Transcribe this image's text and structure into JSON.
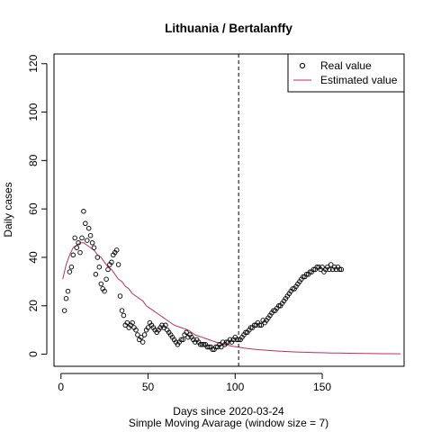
{
  "chart_data": {
    "type": "scatter",
    "title": "Lithuania / Bertalanffy",
    "xlabel": "Days since 2020-03-24",
    "xlabel_sub": "Simple Moving Avarage (window size = 7)",
    "ylabel": "Daily cases",
    "xlim": [
      -4,
      197
    ],
    "ylim": [
      -5,
      124
    ],
    "x_ticks": [
      0,
      50,
      100,
      150
    ],
    "y_ticks": [
      0,
      20,
      40,
      60,
      80,
      100,
      120
    ],
    "vline_x": 102,
    "legend": {
      "position": "top-right",
      "entries": [
        "Real value",
        "Estimated value"
      ]
    },
    "colors": {
      "real": "#000000",
      "estimated": "#c0305a"
    },
    "series": [
      {
        "name": "Real value",
        "kind": "points",
        "x": [
          2,
          3,
          4,
          5,
          6,
          7,
          8,
          9,
          10,
          11,
          12,
          13,
          14,
          15,
          16,
          17,
          18,
          19,
          20,
          21,
          22,
          23,
          24,
          25,
          26,
          27,
          28,
          29,
          30,
          31,
          32,
          33,
          34,
          35,
          36,
          37,
          38,
          39,
          40,
          41,
          42,
          43,
          44,
          45,
          46,
          47,
          48,
          49,
          50,
          51,
          52,
          53,
          54,
          55,
          56,
          57,
          58,
          59,
          60,
          61,
          62,
          63,
          64,
          65,
          66,
          67,
          68,
          69,
          70,
          71,
          72,
          73,
          74,
          75,
          76,
          77,
          78,
          79,
          80,
          81,
          82,
          83,
          84,
          85,
          86,
          87,
          88,
          89,
          90,
          91,
          92,
          93,
          94,
          95,
          96,
          97,
          98,
          99,
          100,
          101,
          102,
          103,
          104,
          105,
          106,
          107,
          108,
          109,
          110,
          111,
          112,
          113,
          114,
          115,
          116,
          117,
          118,
          119,
          120,
          121,
          122,
          123,
          124,
          125,
          126,
          127,
          128,
          129,
          130,
          131,
          132,
          133,
          134,
          135,
          136,
          137,
          138,
          139,
          140,
          141,
          142,
          143,
          144,
          145,
          146,
          147,
          148,
          149,
          150,
          151,
          152,
          153,
          154,
          155,
          156,
          157,
          158,
          159,
          160,
          161
        ],
        "y": [
          18,
          23,
          26,
          34,
          36,
          41,
          48,
          44,
          46,
          42,
          48,
          59,
          54,
          47,
          52,
          49,
          46,
          44,
          33,
          40,
          36,
          29,
          27,
          26,
          31,
          35,
          37,
          38,
          41,
          42,
          43,
          37,
          24,
          18,
          16,
          12,
          13,
          11,
          12,
          13,
          11,
          10,
          8,
          6,
          7,
          5,
          8,
          10,
          11,
          13,
          12,
          11,
          10,
          9,
          10,
          11,
          12,
          11,
          12,
          10,
          9,
          8,
          7,
          6,
          5,
          4,
          5,
          6,
          6,
          8,
          9,
          7,
          8,
          7,
          6,
          5,
          6,
          5,
          4,
          4,
          4,
          4,
          3,
          3,
          3,
          2,
          2,
          3,
          3,
          4,
          3,
          5,
          4,
          5,
          5,
          6,
          5,
          6,
          7,
          6,
          6,
          6,
          7,
          8,
          9,
          9,
          10,
          11,
          11,
          12,
          12,
          13,
          12,
          12,
          14,
          13,
          14,
          15,
          16,
          17,
          18,
          18,
          19,
          20,
          20,
          21,
          22,
          23,
          24,
          25,
          26,
          27,
          27,
          28,
          29,
          30,
          31,
          32,
          32,
          33,
          33,
          34,
          34,
          35,
          35,
          36,
          36,
          35,
          36,
          34,
          35,
          36,
          35,
          37,
          35,
          36,
          35,
          36,
          35,
          35
        ],
        "note": ""
      },
      {
        "name": "Estimated value",
        "kind": "line",
        "x": [
          1,
          3,
          5,
          7,
          9,
          11,
          13,
          15,
          17,
          19,
          21,
          23,
          25,
          27,
          29,
          31,
          33,
          35,
          37,
          39,
          41,
          43,
          45,
          47,
          49,
          51,
          53,
          55,
          57,
          59,
          61,
          63,
          65,
          67,
          69,
          71,
          73,
          75,
          77,
          79,
          81,
          83,
          85,
          87,
          89,
          91,
          93,
          95,
          97,
          99,
          101,
          103,
          105,
          110,
          115,
          120,
          125,
          130,
          135,
          140,
          145,
          150,
          155,
          160,
          165,
          170,
          175,
          180,
          185,
          190,
          195
        ],
        "y": [
          31,
          37,
          41,
          44,
          45,
          46,
          46,
          45,
          44,
          43,
          41,
          40,
          38,
          36,
          35,
          33,
          31,
          30,
          28,
          27,
          25,
          24,
          23,
          22,
          20,
          19,
          18,
          17,
          16,
          15,
          14,
          13,
          12,
          11.5,
          11,
          10.5,
          10,
          9,
          8,
          7.5,
          7,
          6.5,
          6,
          5.5,
          5,
          4.5,
          4,
          3.8,
          3.5,
          3.2,
          3,
          2.8,
          2.5,
          2.1,
          1.8,
          1.5,
          1.3,
          1.1,
          0.9,
          0.8,
          0.7,
          0.6,
          0.5,
          0.45,
          0.4,
          0.35,
          0.3,
          0.25,
          0.22,
          0.2,
          0.18
        ]
      }
    ]
  }
}
